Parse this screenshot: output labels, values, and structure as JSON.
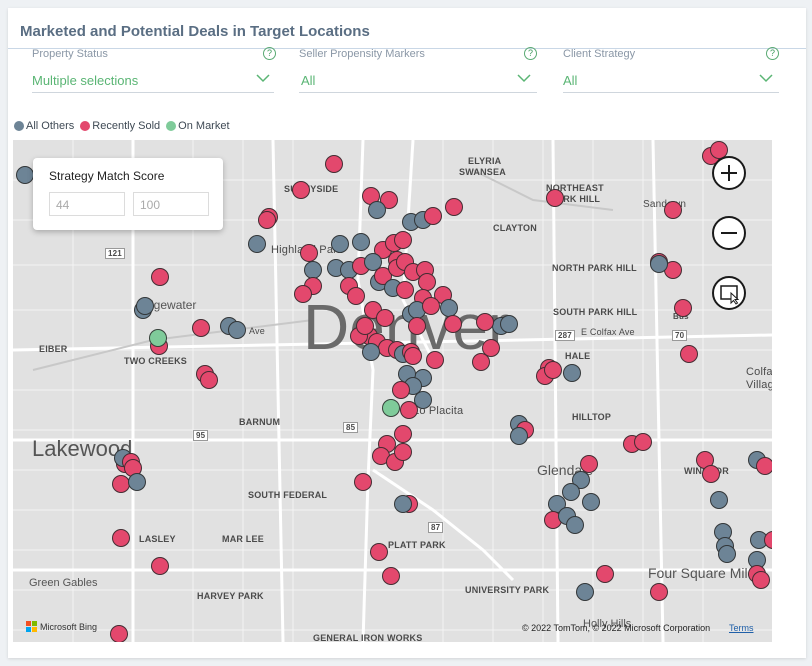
{
  "title": "Marketed and Potential Deals in Target Locations",
  "slicers": [
    {
      "label": "Property Status",
      "value": "Multiple selections"
    },
    {
      "label": "Seller Propensity Markers",
      "value": "All"
    },
    {
      "label": "Client Strategy",
      "value": "All"
    }
  ],
  "help_glyph": "?",
  "legend": [
    {
      "label": "All Others",
      "color": "#6d8496"
    },
    {
      "label": "Recently Sold",
      "color": "#e3486d"
    },
    {
      "label": "On Market",
      "color": "#7fcb9a"
    }
  ],
  "score_filter": {
    "title": "Strategy Match Score",
    "min": "44",
    "max": "100"
  },
  "map": {
    "city_label": "Denver",
    "places": [
      "ELYRIA",
      "SWANSEA",
      "SUNNYSIDE",
      "NORTHEAST",
      "PARK HILL",
      "Sandown",
      "Highland Park",
      "CLAYTON",
      "NORTH PARK HILL",
      "Edgewater",
      "SOUTH PARK HILL",
      "E Colfax Ave",
      "Bus",
      "EIBER",
      "TWO CREEKS",
      "HALE",
      "Colfax",
      "Village",
      "Lakewood",
      "BARNUM",
      "Lo Placita",
      "HILLTOP",
      "Glendale",
      "WINDSOR",
      "SOUTH FEDERAL",
      "LASLEY",
      "MAR LEE",
      "PLATT PARK",
      "Four Square Mile",
      "Green Gables",
      "HARVEY PARK",
      "UNIVERSITY PARK",
      "Holly Hills",
      "GENERAL IRON WORKS",
      "Ave"
    ],
    "route_shields": [
      "121",
      "95",
      "85",
      "287",
      "70",
      "87"
    ],
    "attribution": {
      "bing": "Microsoft Bing",
      "copyright": "© 2022 TomTom, © 2022 Microsoft Corporation",
      "terms": "Terms"
    }
  },
  "markers_note_counts": {
    "all_others": "many",
    "recently_sold": "many",
    "on_market": "2"
  }
}
